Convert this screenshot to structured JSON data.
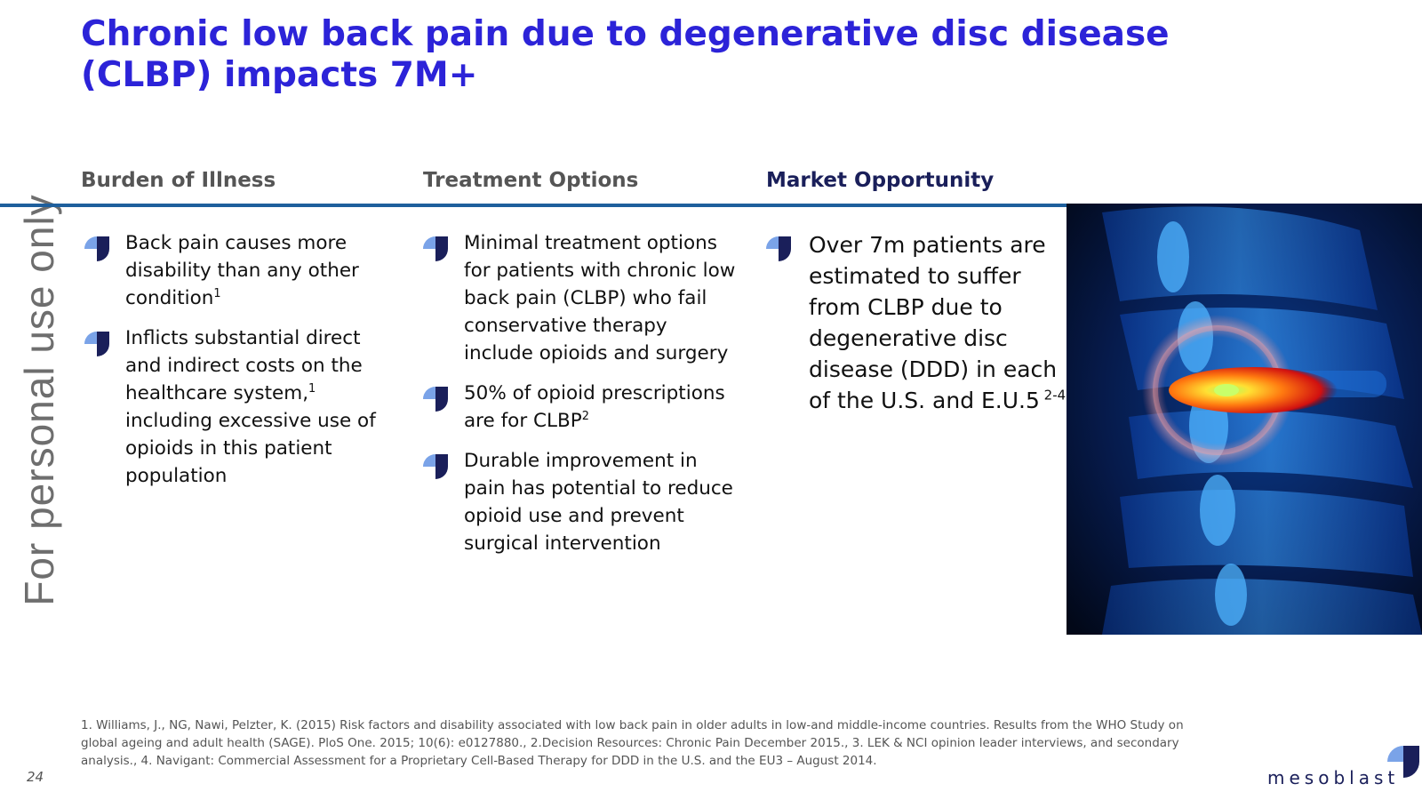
{
  "title": "Chronic low back pain due to degenerative disc disease (CLBP) impacts 7M+",
  "watermark": "For personal use only",
  "columns": [
    {
      "heading": "Burden of Illness",
      "bullets": [
        {
          "text": "Back pain causes more disability than any other condition",
          "sup": "1",
          "tail": ""
        },
        {
          "text": "Inflicts substantial direct and indirect costs on the healthcare system,",
          "sup": "1",
          "tail": " including excessive use of opioids in this patient population"
        }
      ]
    },
    {
      "heading": "Treatment Options",
      "bullets": [
        {
          "text": "Minimal treatment options for patients with chronic low back pain (CLBP) who fail conservative therapy include opioids and surgery",
          "sup": "",
          "tail": ""
        },
        {
          "text": "50% of opioid prescriptions are for CLBP",
          "sup": "2",
          "tail": ""
        },
        {
          "text": "Durable improvement in pain has potential to reduce opioid use and prevent surgical intervention",
          "sup": "",
          "tail": ""
        }
      ]
    },
    {
      "heading": "Market Opportunity",
      "bullets": [
        {
          "text": "Over 7m patients are estimated to suffer from CLBP due to degenerative disc disease (DDD) in each of the U.S. and E.U.5",
          "sup": " 2-4",
          "tail": ""
        }
      ]
    }
  ],
  "footnote": "1. Williams, J., NG, Nawi, Pelzter, K. (2015) Risk factors and disability associated with low back pain in older adults in low-and middle-income countries. Results from the WHO Study on global ageing and adult health (SAGE). PloS One. 2015; 10(6): e0127880., 2.Decision Resources: Chronic Pain December 2015., 3. LEK & NCI opinion leader interviews, and secondary analysis., 4. Navigant: Commercial Assessment for a Proprietary Cell-Based Therapy for DDD in the U.S. and the EU3 – August 2014.",
  "page_number": "24",
  "logo": "mesoblast",
  "colors": {
    "title": "#2c23d8",
    "rule": "#1e5f9c",
    "navy": "#1a1f5a",
    "bullet_light": "#7aa3e8"
  },
  "icons": {
    "bullet": "mesoblast-bullet-icon",
    "image": "spine-disc-illustration"
  }
}
